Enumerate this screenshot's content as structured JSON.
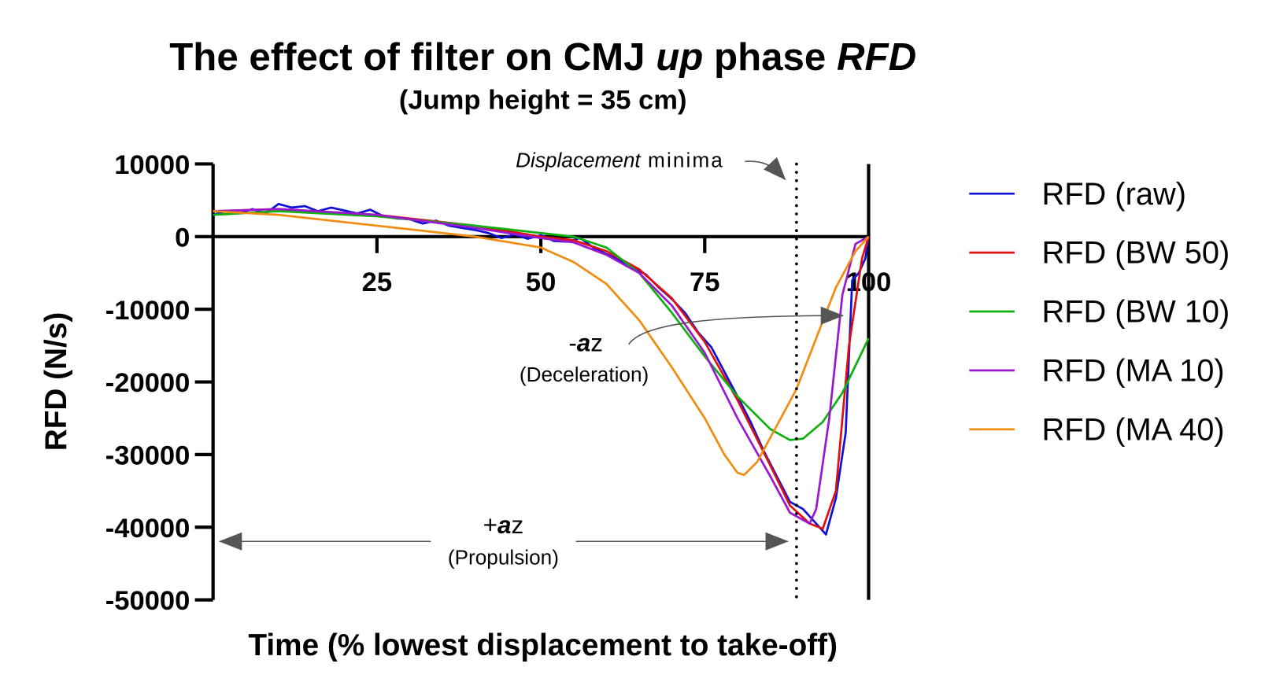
{
  "chart_data": {
    "type": "line",
    "title": "The effect of filter on CMJ up phase RFD",
    "title_parts": {
      "a": "The effect of filter on CMJ ",
      "b": "up",
      "c": " phase ",
      "d": "RFD"
    },
    "subtitle": "(Jump height = 35 cm)",
    "xlabel": "Time (% lowest displacement to take-off)",
    "ylabel": "RFD (N/s)",
    "xlim": [
      0,
      100
    ],
    "ylim": [
      -50000,
      10000
    ],
    "x_ticks": [
      "25",
      "50",
      "75",
      "100"
    ],
    "x_tick_values": [
      25,
      50,
      75,
      100
    ],
    "y_ticks": [
      "10000",
      "0",
      "-10000",
      "-20000",
      "-30000",
      "-40000",
      "-50000"
    ],
    "y_tick_values": [
      10000,
      0,
      -10000,
      -20000,
      -30000,
      -40000,
      -50000
    ],
    "grid": false,
    "legend_position": "right",
    "vertical_marker": {
      "x": 89,
      "label_italic": "Displacement",
      "label": " minima",
      "style": "dotted"
    },
    "annotations": {
      "deceleration": {
        "symbol_pre": "-",
        "symbol_a": "a",
        "symbol_post": "z",
        "label": "(Deceleration)"
      },
      "propulsion": {
        "symbol_pre": "+",
        "symbol_a": "a",
        "symbol_post": "z",
        "label": "(Propulsion)"
      }
    },
    "series": [
      {
        "name": "RFD (raw)",
        "color": "#1010d8",
        "x": [
          0,
          2,
          4,
          6,
          8,
          10,
          12,
          14,
          16,
          18,
          20,
          22,
          24,
          26,
          28,
          30,
          32,
          34,
          36,
          38,
          40,
          42,
          44,
          46,
          48,
          50,
          52,
          54,
          56,
          58,
          60,
          62,
          64,
          66,
          68,
          70,
          72,
          74,
          76,
          78,
          80,
          82,
          84,
          86,
          88,
          90,
          92,
          93.5,
          95,
          96.5,
          97.5,
          98.5,
          99.5,
          100
        ],
        "y": [
          3000,
          3500,
          3200,
          3800,
          3200,
          4500,
          4000,
          4200,
          3500,
          4000,
          3600,
          3200,
          3700,
          2800,
          2500,
          2400,
          1800,
          2200,
          1500,
          1200,
          900,
          500,
          -200,
          300,
          -300,
          200,
          -600,
          -700,
          -200,
          -1500,
          -2400,
          -3200,
          -4300,
          -5200,
          -7000,
          -8600,
          -10500,
          -13200,
          -15200,
          -18600,
          -22000,
          -25500,
          -29500,
          -33000,
          -36500,
          -37500,
          -39500,
          -41000,
          -36000,
          -27000,
          -6000,
          -5000,
          -3000,
          0
        ]
      },
      {
        "name": "RFD (BW 50)",
        "color": "#e01010",
        "x": [
          0,
          10,
          25,
          40,
          50,
          55,
          60,
          65,
          70,
          75,
          80,
          85,
          88,
          91,
          93,
          95,
          97,
          99,
          100
        ],
        "y": [
          3500,
          3800,
          3000,
          1500,
          0,
          -500,
          -2000,
          -4500,
          -8500,
          -14500,
          -22500,
          -31500,
          -37000,
          -39500,
          -40200,
          -35000,
          -15000,
          -3000,
          0
        ]
      },
      {
        "name": "RFD (BW 10)",
        "color": "#10b010",
        "x": [
          0,
          10,
          25,
          40,
          50,
          55,
          60,
          65,
          70,
          75,
          80,
          85,
          88,
          90,
          93,
          96,
          100
        ],
        "y": [
          3000,
          3500,
          2800,
          1500,
          500,
          0,
          -1500,
          -5000,
          -10500,
          -16500,
          -22000,
          -26500,
          -28000,
          -27800,
          -25500,
          -21500,
          -14000
        ]
      },
      {
        "name": "RFD (MA 10)",
        "color": "#9a18d0",
        "x": [
          0,
          10,
          25,
          40,
          50,
          55,
          60,
          65,
          70,
          75,
          80,
          85,
          88,
          91,
          92,
          94,
          96,
          98,
          100
        ],
        "y": [
          3500,
          3800,
          3000,
          1200,
          -200,
          -800,
          -2500,
          -5000,
          -9500,
          -16000,
          -25000,
          -33000,
          -38000,
          -39500,
          -37500,
          -25000,
          -8000,
          -1000,
          0
        ]
      },
      {
        "name": "RFD (MA 40)",
        "color": "#f08c10",
        "x": [
          0,
          10,
          25,
          40,
          50,
          55,
          60,
          65,
          70,
          75,
          78,
          80,
          81,
          83,
          86,
          89,
          92,
          95,
          98,
          100
        ],
        "y": [
          3500,
          3000,
          1500,
          0,
          -1500,
          -3500,
          -6500,
          -11500,
          -18000,
          -25000,
          -30000,
          -32500,
          -32800,
          -31000,
          -26000,
          -21000,
          -14000,
          -7000,
          -2000,
          0
        ]
      }
    ]
  }
}
